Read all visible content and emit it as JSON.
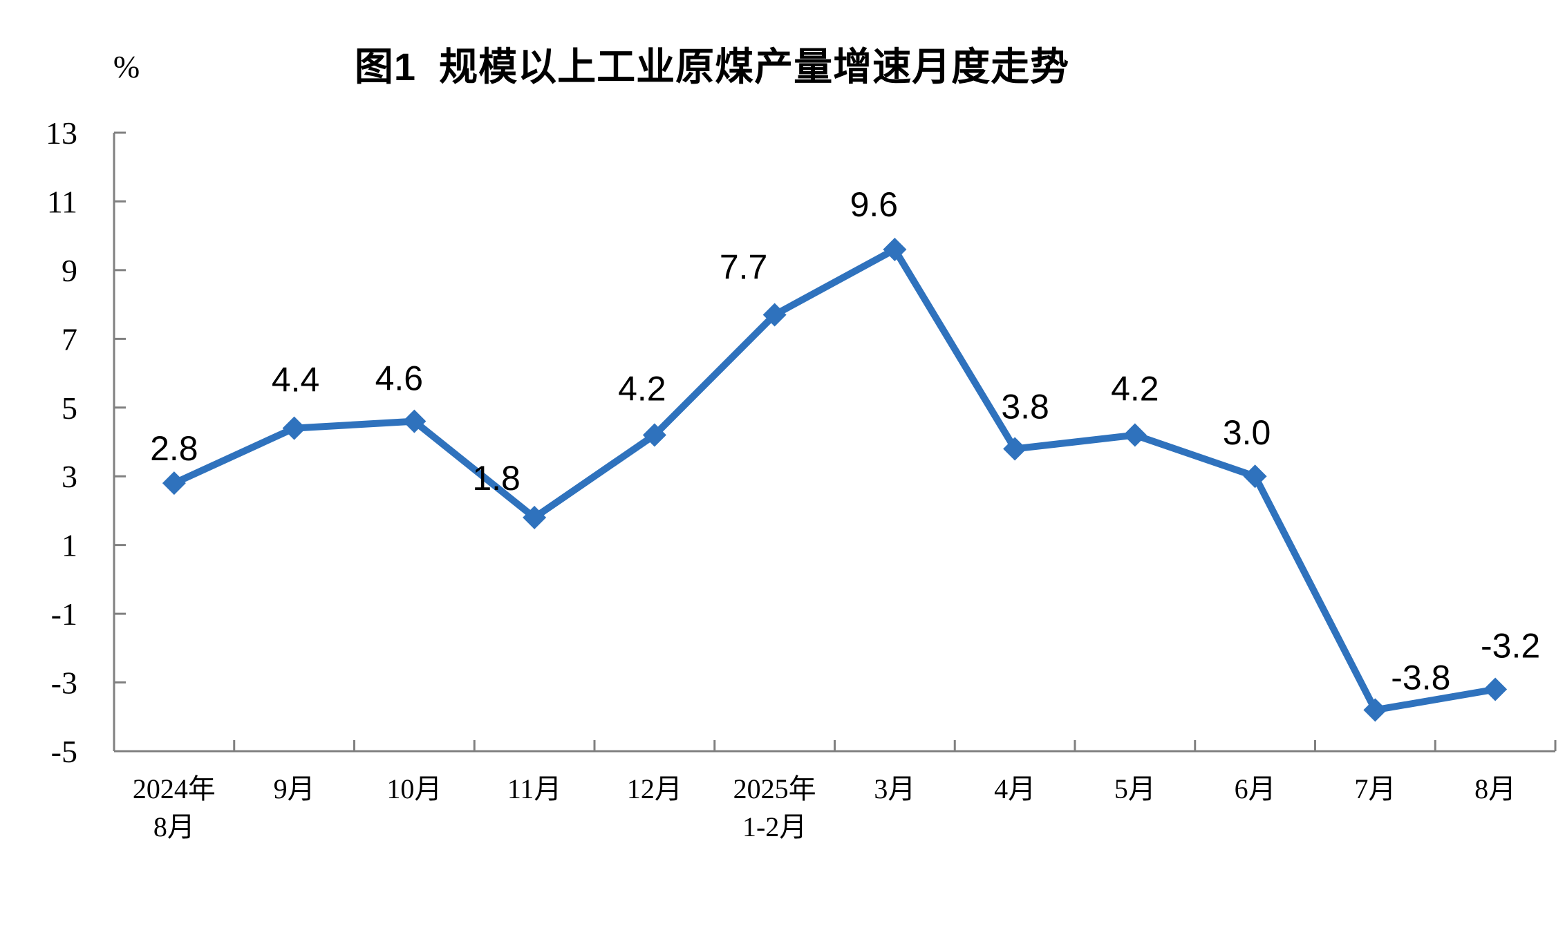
{
  "chart_data": {
    "type": "line",
    "title": "图1  规模以上工业原煤产量增速月度走势",
    "ylabel": "%",
    "xlabel": "",
    "categories": [
      "2024年\n8月",
      "9月",
      "10月",
      "11月",
      "12月",
      "2025年\n1-2月",
      "3月",
      "4月",
      "5月",
      "6月",
      "7月",
      "8月"
    ],
    "values": [
      2.8,
      4.4,
      4.6,
      1.8,
      4.2,
      7.7,
      9.6,
      3.8,
      4.2,
      3.0,
      -3.8,
      -3.2
    ],
    "point_labels": [
      "2.8",
      "4.4",
      "4.6",
      "1.8",
      "4.2",
      "7.7",
      "9.6",
      "3.8",
      "4.2",
      "3.0",
      "-3.8",
      "-3.2"
    ],
    "y_ticks": [
      13,
      11,
      9,
      7,
      5,
      3,
      1,
      -1,
      -3,
      -5
    ],
    "ylim": [
      -5,
      13
    ],
    "grid": false,
    "legend": "none",
    "marker": "diamond",
    "colors": {
      "line": "#2F72BD",
      "axis": "#808080",
      "text": "#000000"
    }
  }
}
